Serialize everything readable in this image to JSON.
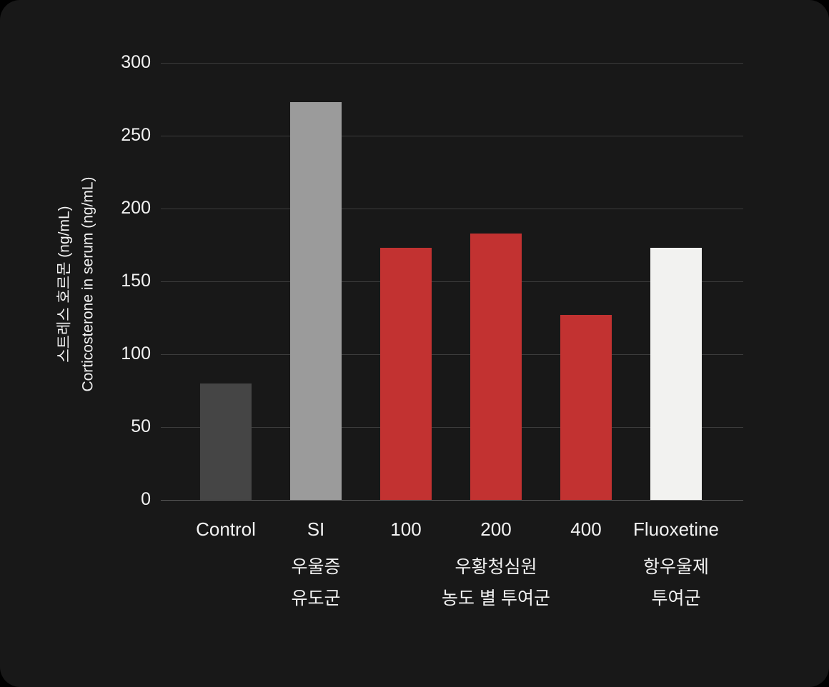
{
  "chart_data": {
    "type": "bar",
    "title": "",
    "categories": [
      "Control",
      "SI",
      "100",
      "200",
      "400",
      "Fluoxetine"
    ],
    "values": [
      80,
      273,
      173,
      183,
      127,
      173
    ],
    "colors": [
      "#454545",
      "#9b9b9b",
      "#c23231",
      "#c23231",
      "#c23231",
      "#f2f2f0"
    ],
    "ylim": [
      0,
      300
    ],
    "yticks": [
      0,
      50,
      100,
      150,
      200,
      250,
      300
    ],
    "ylabel_lines": [
      "스트레스 호르몬 (ng/mL)",
      "Corticosterone in serum (ng/mL)"
    ],
    "xlabel": "",
    "grid": "horizontal",
    "legend": "none",
    "background": "#181818",
    "group_labels": [
      {
        "lines": [
          "우울증",
          "유도군"
        ],
        "center_index": 1
      },
      {
        "lines": [
          "우황청심원",
          "농도 별 투여군"
        ],
        "center_index": 3
      },
      {
        "lines": [
          "항우울제",
          "투여군"
        ],
        "center_index": 5
      }
    ]
  }
}
